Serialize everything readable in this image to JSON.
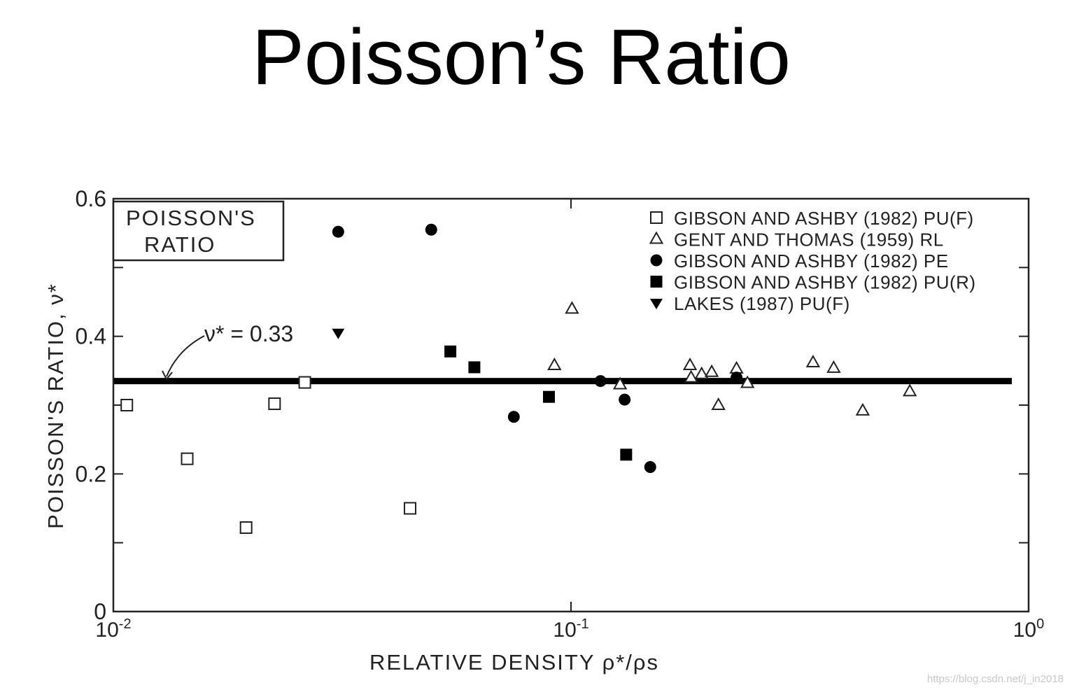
{
  "slide": {
    "title": "Poisson’s Ratio"
  },
  "watermark": "https://blog.csdn.net/j_in2018",
  "chart_data": {
    "type": "scatter",
    "x_scale": "log",
    "xlim": [
      0.01,
      1
    ],
    "ylim": [
      0,
      0.6
    ],
    "xlabel": "RELATIVE DENSITY ρ*/ρs",
    "ylabel": "POISSON'S RATIO, ν*",
    "x_ticks": [
      {
        "value": 0.01,
        "base": "10",
        "exp": "-2"
      },
      {
        "value": 0.1,
        "base": "10",
        "exp": "-1"
      },
      {
        "value": 1,
        "base": "10",
        "exp": "0"
      }
    ],
    "y_ticks": [
      {
        "value": 0,
        "label": "0"
      },
      {
        "value": 0.2,
        "label": "0.2"
      },
      {
        "value": 0.4,
        "label": "0.4"
      },
      {
        "value": 0.6,
        "label": "0.6"
      }
    ],
    "y_minor_ticks": [
      0.1,
      0.3,
      0.5
    ],
    "inset_title": [
      "POISSON'S",
      "RATIO"
    ],
    "legend_position": "top-right",
    "reference_line": {
      "y": 0.335,
      "label": "ν* = 0.33"
    },
    "series": [
      {
        "name": "GIBSON AND ASHBY (1982) PU(F)",
        "marker": "square-open",
        "x": [
          0.0107,
          0.0145,
          0.0195,
          0.0225,
          0.0262,
          0.0445
        ],
        "y": [
          0.3,
          0.222,
          0.122,
          0.302,
          0.333,
          0.15
        ]
      },
      {
        "name": "GENT AND THOMAS (1959) RL",
        "marker": "triangle-open",
        "x": [
          0.092,
          0.1005,
          0.128,
          0.182,
          0.183,
          0.193,
          0.203,
          0.21,
          0.23,
          0.243,
          0.338,
          0.375,
          0.434,
          0.55
        ],
        "y": [
          0.358,
          0.44,
          0.33,
          0.358,
          0.34,
          0.345,
          0.348,
          0.3,
          0.353,
          0.332,
          0.362,
          0.354,
          0.292,
          0.32
        ]
      },
      {
        "name": "GIBSON AND ASHBY (1982) PE",
        "marker": "circle-filled",
        "x": [
          0.031,
          0.0495,
          0.075,
          0.116,
          0.131,
          0.149,
          0.23
        ],
        "y": [
          0.552,
          0.555,
          0.283,
          0.335,
          0.308,
          0.21,
          0.34
        ]
      },
      {
        "name": "GIBSON AND ASHBY (1982) PU(R)",
        "marker": "square-filled",
        "x": [
          0.0545,
          0.0615,
          0.0895,
          0.132
        ],
        "y": [
          0.378,
          0.355,
          0.312,
          0.228
        ]
      },
      {
        "name": "LAKES (1987) PU(F)",
        "marker": "triangle-down-filled",
        "x": [
          0.031
        ],
        "y": [
          0.405
        ]
      }
    ]
  }
}
